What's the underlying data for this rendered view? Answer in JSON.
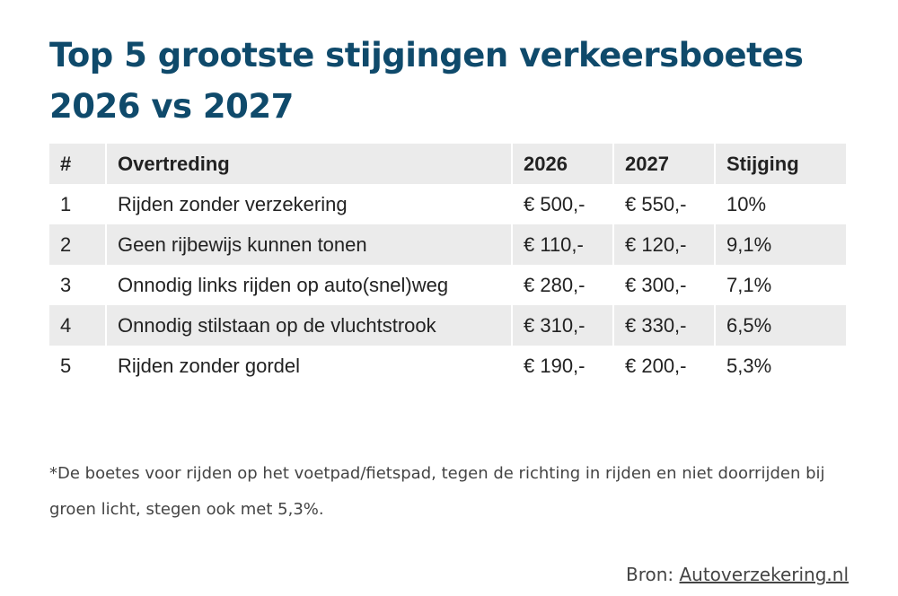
{
  "title": {
    "line1": "Top 5 grootste stijgingen verkeersboetes",
    "line2": "2026 vs 2027"
  },
  "table": {
    "headers": [
      "#",
      "Overtreding",
      "2026",
      "2027",
      "Stijging"
    ],
    "rows": [
      [
        "1",
        "Rijden zonder verzekering",
        "€ 500,-",
        "€ 550,-",
        "10%"
      ],
      [
        "2",
        "Geen rijbewijs kunnen tonen",
        "€ 110,-",
        "€ 120,-",
        "9,1%"
      ],
      [
        "3",
        "Onnodig links rijden op auto(snel)weg",
        "€ 280,-",
        "€ 300,-",
        "7,1%"
      ],
      [
        "4",
        "Onnodig stilstaan op de vluchtstrook",
        "€ 310,-",
        "€ 330,-",
        "6,5%"
      ],
      [
        "5",
        "Rijden zonder gordel",
        "€ 190,-",
        "€ 200,-",
        "5,3%"
      ]
    ]
  },
  "footnote": "*De boetes voor rijden op het voetpad/fietspad, tegen de richting in rijden en niet doorrijden bij groen licht, stegen ook met 5,3%.",
  "source": {
    "prefix": "Bron:",
    "link_text": "Autoverzekering.nl"
  },
  "colors": {
    "title": "#0f4a6b",
    "stripe": "#ebebeb"
  }
}
